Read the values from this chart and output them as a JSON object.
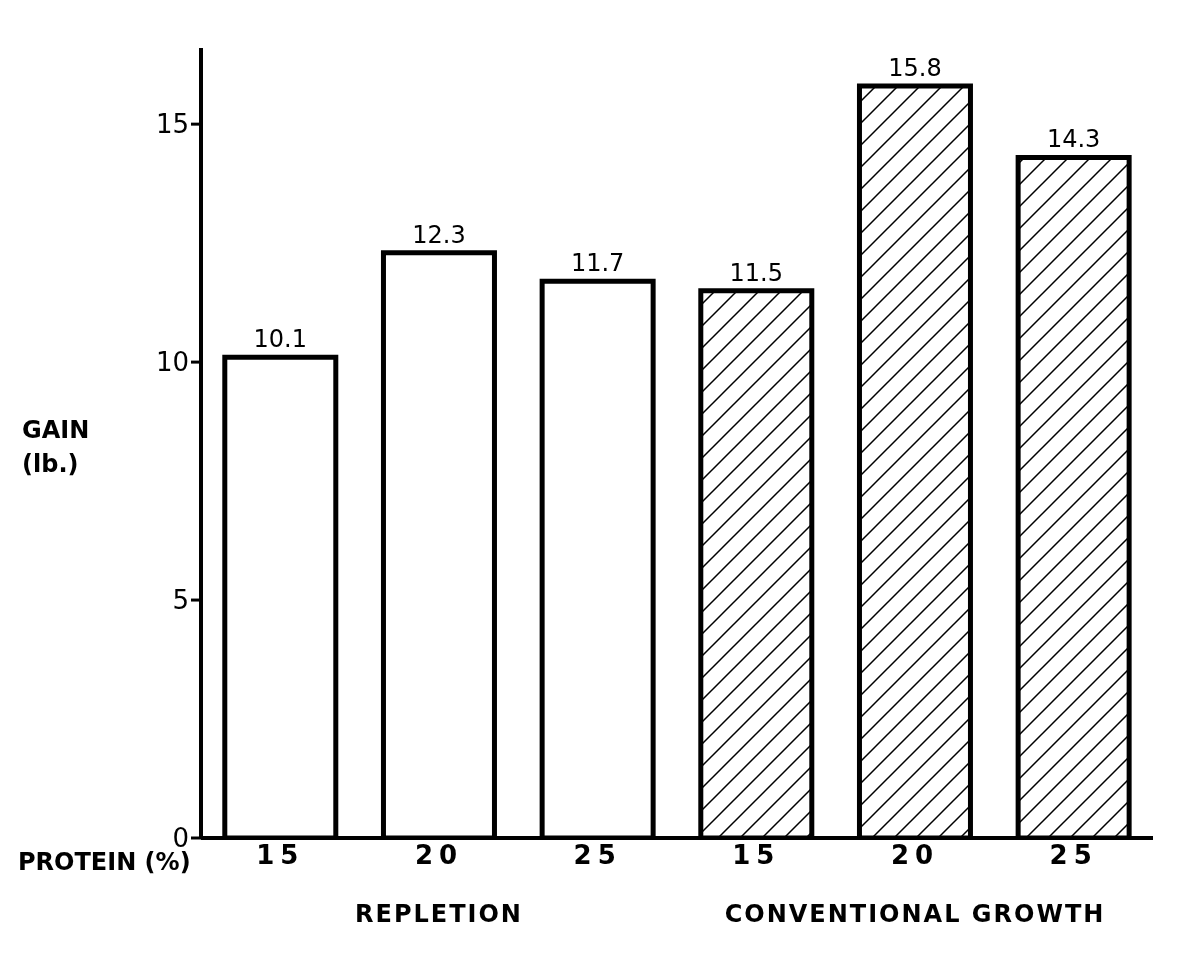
{
  "chart_data": {
    "type": "bar",
    "xlabel": "PROTEIN (%)",
    "ylabel": "GAIN (lb.)",
    "categories": [
      "15",
      "20",
      "25",
      "15",
      "20",
      "25"
    ],
    "series": [
      {
        "name": "REPLETION",
        "color": "#ffffff",
        "values": [
          10.1,
          12.3,
          11.7,
          null,
          null,
          null
        ]
      },
      {
        "name": "CONVENTIONAL GROWTH",
        "color": "#000000",
        "values": [
          null,
          null,
          null,
          11.5,
          15.8,
          14.3
        ]
      }
    ],
    "stacked": true,
    "data_labels": true,
    "ylim": [
      0,
      16.6
    ],
    "yticks": [
      0,
      5,
      10,
      15
    ],
    "grid": false,
    "legend": false
  }
}
